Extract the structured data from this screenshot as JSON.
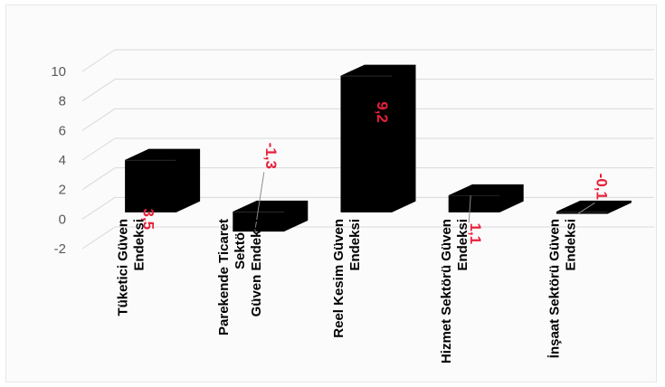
{
  "chart_data": {
    "type": "bar",
    "title": "",
    "xlabel": "",
    "ylabel": "",
    "categories": [
      [
        "Tüketici Güven",
        "Endeksi"
      ],
      [
        "Parekende Ticaret",
        "Sektörü",
        "Güven Endeksi"
      ],
      [
        "Reel Kesim Güven",
        "Endeksi"
      ],
      [
        "Hizmet Sektörü Güven",
        "Endeksi"
      ],
      [
        "İnşaat Sektörü Güven",
        "Endeksi"
      ]
    ],
    "values": [
      3.5,
      -1.3,
      9.2,
      1.1,
      -0.1
    ],
    "value_labels": [
      "3,5",
      "-1,3",
      "9,2",
      "1,1",
      "-0,1"
    ],
    "ylim": [
      -2,
      10
    ],
    "yticks": [
      "-2",
      "0",
      "2",
      "4",
      "6",
      "8",
      "10"
    ],
    "grid": true,
    "bar_color": "#000000",
    "label_color": "#e8203a",
    "grid_color": "#d9d9d9",
    "tick_color": "#595959"
  }
}
